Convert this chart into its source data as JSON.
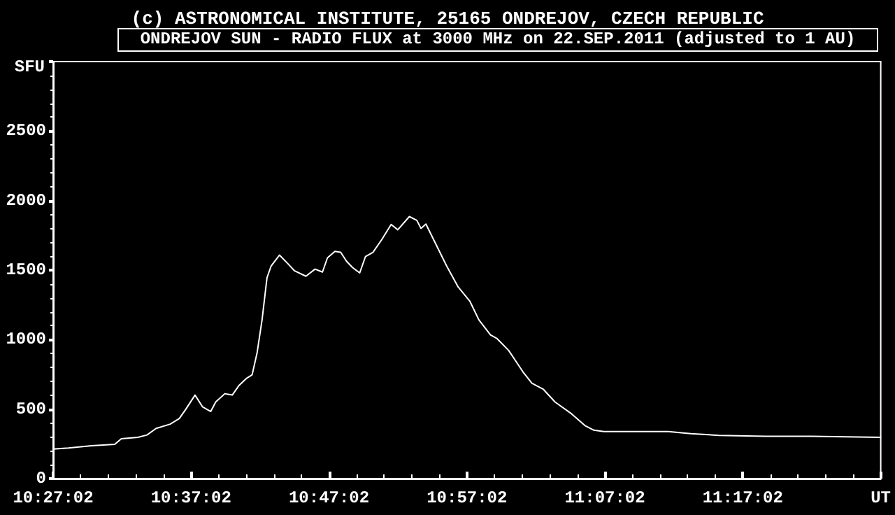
{
  "chart_data": {
    "type": "line",
    "subtitle": "(c) ASTRONOMICAL INSTITUTE, 25165 ONDREJOV, CZECH REPUBLIC",
    "title": "ONDREJOV SUN - RADIO FLUX at 3000 MHz on 22.SEP.2011 (adjusted to 1 AU)",
    "ylabel": "SFU",
    "x": [
      10.4506,
      10.469,
      10.497,
      10.525,
      10.533,
      10.553,
      10.564,
      10.575,
      10.592,
      10.603,
      10.611,
      10.622,
      10.631,
      10.641,
      10.647,
      10.658,
      10.667,
      10.675,
      10.684,
      10.691,
      10.697,
      10.703,
      10.709,
      10.714,
      10.724,
      10.734,
      10.742,
      10.756,
      10.767,
      10.776,
      10.782,
      10.791,
      10.798,
      10.805,
      10.812,
      10.821,
      10.828,
      10.837,
      10.848,
      10.859,
      10.867,
      10.881,
      10.89,
      10.895,
      10.901,
      10.912,
      10.926,
      10.94,
      10.954,
      10.965,
      10.979,
      10.987,
      11.001,
      11.018,
      11.029,
      11.043,
      11.057,
      11.077,
      11.093,
      11.104,
      11.116,
      11.194,
      11.221,
      11.255,
      11.311,
      11.366,
      11.45
    ],
    "series": [
      {
        "color": "#ffffff",
        "values": [
          213,
          220,
          236,
          247,
          287,
          297,
          314,
          361,
          392,
          432,
          500,
          601,
          517,
          483,
          551,
          611,
          601,
          669,
          720,
          747,
          905,
          1142,
          1446,
          1530,
          1608,
          1547,
          1496,
          1456,
          1507,
          1486,
          1588,
          1635,
          1628,
          1564,
          1520,
          1480,
          1598,
          1628,
          1723,
          1828,
          1790,
          1885,
          1858,
          1800,
          1831,
          1699,
          1530,
          1378,
          1277,
          1142,
          1034,
          1007,
          922,
          770,
          686,
          642,
          551,
          466,
          382,
          348,
          338,
          338,
          324,
          311,
          304,
          304,
          297
        ]
      }
    ],
    "xlim": [
      10.45056,
      11.45056
    ],
    "xticks": [
      {
        "value": 10.45056,
        "label": "10:27:02"
      },
      {
        "value": 10.61722,
        "label": "10:37:02"
      },
      {
        "value": 10.78389,
        "label": "10:47:02"
      },
      {
        "value": 10.95056,
        "label": "10:57:02"
      },
      {
        "value": 11.11722,
        "label": "11:07:02"
      },
      {
        "value": 11.28389,
        "label": "11:17:02"
      },
      {
        "value": 11.45056,
        "label": "UT"
      }
    ],
    "ylim": [
      0,
      3000
    ],
    "yticks": [
      0,
      500,
      1000,
      1500,
      2000,
      2500
    ],
    "grid": false,
    "marker": "none",
    "line_style": "solid"
  }
}
